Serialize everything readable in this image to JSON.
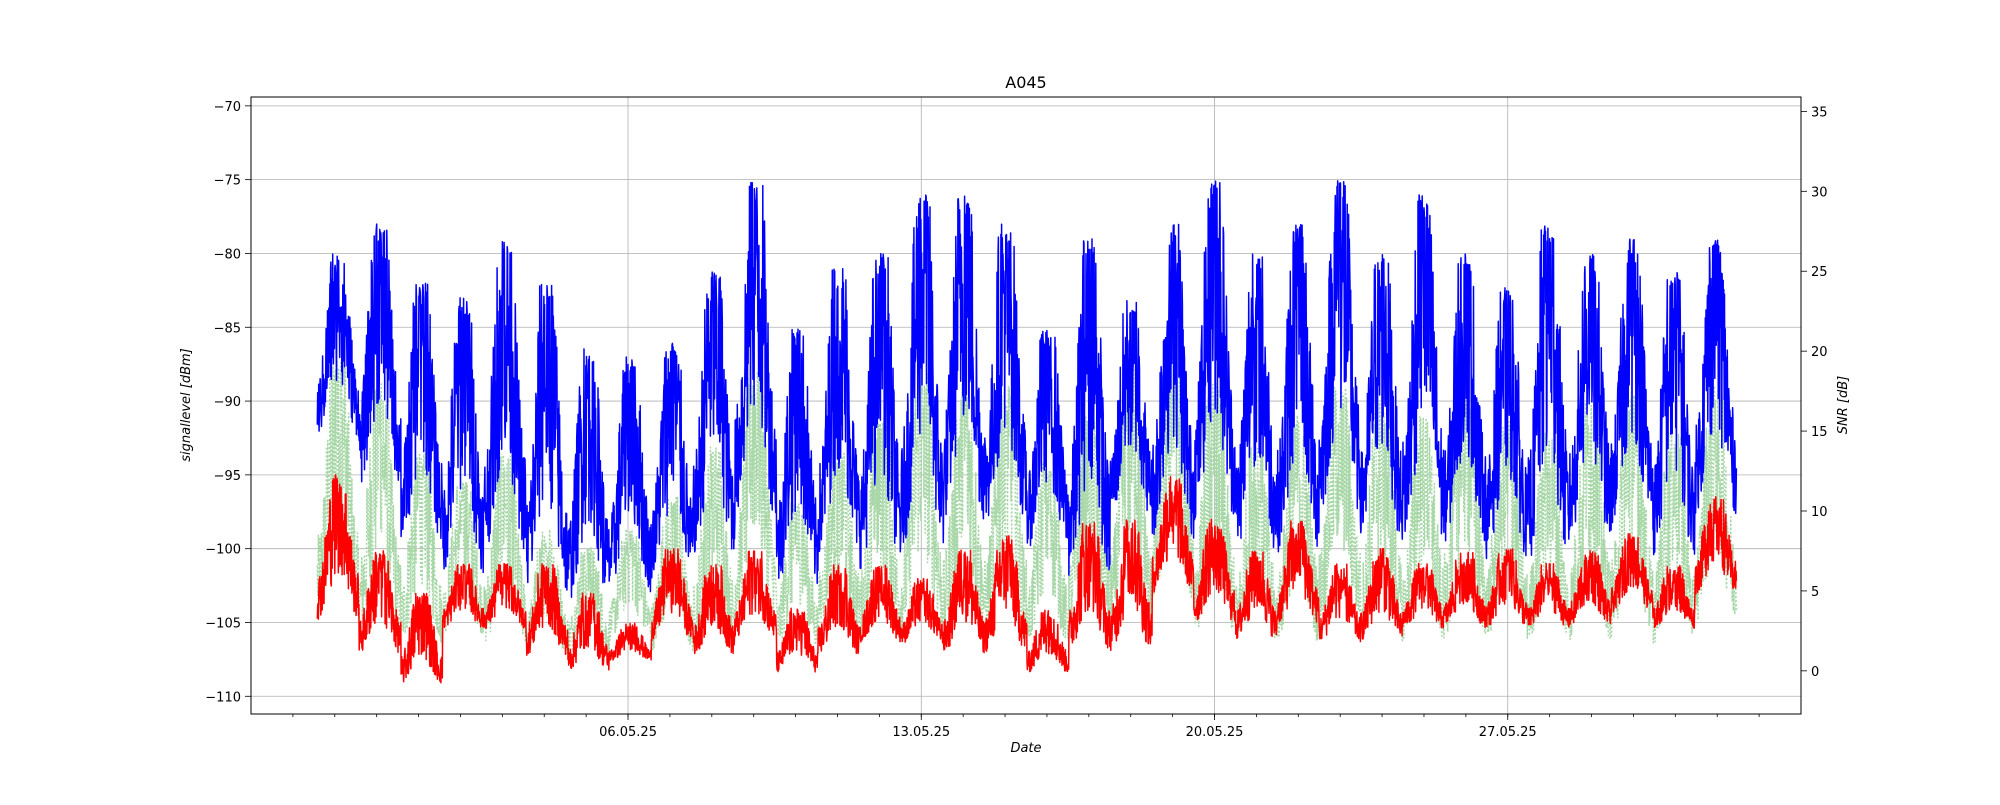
{
  "chart_data": {
    "type": "line",
    "title": "A045",
    "xlabel": "Date",
    "ylabel_left": "signallevel [dBm]",
    "ylabel_right": "SNR [dB]",
    "x_range": [
      "2025-04-27",
      "2025-06-03"
    ],
    "x_ticks": [
      {
        "date": "2025-05-06",
        "label": "06.05.25"
      },
      {
        "date": "2025-05-13",
        "label": "13.05.25"
      },
      {
        "date": "2025-05-20",
        "label": "20.05.25"
      },
      {
        "date": "2025-05-27",
        "label": "27.05.25"
      }
    ],
    "x_minor_tick_interval_days": 1,
    "ylim_left": [
      -111.2,
      -69.4
    ],
    "yticks_left": [
      -70,
      -75,
      -80,
      -85,
      -90,
      -95,
      -100,
      -105,
      -110
    ],
    "ylim_right": [
      -2.7,
      35.9
    ],
    "yticks_right": [
      35,
      30,
      25,
      20,
      15,
      10,
      5,
      0
    ],
    "grid": true,
    "series_time_range": [
      "2025-04-28T14:00",
      "2025-06-01T11:00"
    ],
    "series": [
      {
        "axis": "left",
        "color": "#0000ff",
        "style": "solid",
        "daily_peak": [
          -80,
          -78,
          -82,
          -83,
          -79,
          -82,
          -86,
          -87,
          -86,
          -81,
          -75,
          -85,
          -81,
          -80,
          -76,
          -76,
          -78,
          -85,
          -79,
          -83,
          -78,
          -75,
          -80,
          -78,
          -75,
          -80,
          -76,
          -80,
          -82,
          -78,
          -80,
          -79,
          -81,
          -79
        ],
        "daily_trough": [
          -94,
          -98,
          -102,
          -104,
          -103,
          -106,
          -106,
          -105,
          -104,
          -103,
          -101,
          -105,
          -103,
          -104,
          -103,
          -101,
          -101,
          -102,
          -105,
          -100,
          -102,
          -101,
          -103,
          -103,
          -101,
          -102,
          -103,
          -102,
          -103,
          -104,
          -102,
          -101,
          -103,
          -100
        ]
      },
      {
        "axis": "left",
        "color": "#ff0000",
        "style": "solid",
        "daily_peak": [
          -95,
          -100,
          -103,
          -101,
          -101,
          -101,
          -103,
          -105,
          -100,
          -101,
          -100,
          -104,
          -101,
          -101,
          -102,
          -100,
          -99,
          -104,
          -98,
          -98,
          -95,
          -98,
          -100,
          -98,
          -101,
          -100,
          -101,
          -100,
          -100,
          -101,
          -100,
          -99,
          -101,
          -96
        ],
        "daily_trough": [
          -106,
          -108,
          -110,
          -106,
          -106,
          -108,
          -109,
          -108,
          -107,
          -108,
          -107,
          -109,
          -108,
          -107,
          -107,
          -108,
          -108,
          -109,
          -108,
          -108,
          -104,
          -106,
          -107,
          -106,
          -107,
          -107,
          -106,
          -106,
          -106,
          -106,
          -106,
          -105,
          -106,
          -104
        ]
      },
      {
        "axis": "right",
        "color": "#a7d7a7",
        "style": "dotted",
        "daily_peak": [
          20,
          18,
          14,
          12,
          14,
          9,
          8,
          9,
          11,
          14,
          19,
          11,
          14,
          16,
          19,
          18,
          18,
          13,
          16,
          19,
          21,
          18,
          14,
          16,
          18,
          17,
          16,
          19,
          16,
          15,
          17,
          18,
          15,
          18
        ],
        "daily_trough": [
          1,
          0,
          0,
          1,
          0,
          0,
          0,
          1,
          0,
          0,
          1,
          0,
          1,
          0,
          0,
          0,
          0,
          0,
          1,
          0,
          2,
          0,
          0,
          0,
          1,
          0,
          0,
          0,
          0,
          0,
          0,
          0,
          0,
          1
        ]
      }
    ]
  }
}
